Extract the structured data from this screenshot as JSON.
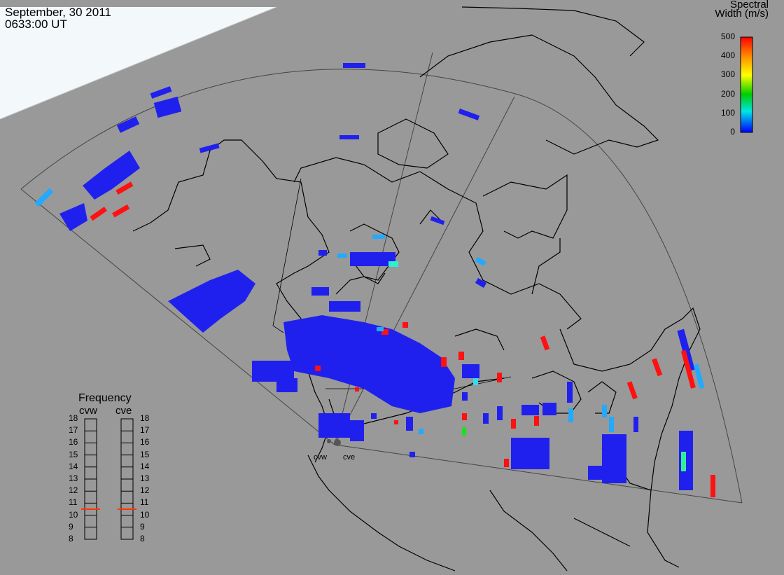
{
  "header": {
    "date": "September, 30 2011",
    "time": "0633:00 UT"
  },
  "colorbar": {
    "title_line1": "Spectral",
    "title_line2": "Width (m/s)",
    "ticks": [
      "500",
      "400",
      "300",
      "200",
      "100",
      "0"
    ],
    "gradient": [
      "#ff0000",
      "#ff8c00",
      "#ffff00",
      "#00cc00",
      "#00e5e5",
      "#0000ff"
    ]
  },
  "radars": {
    "west": "cvw",
    "east": "cve"
  },
  "frequency": {
    "title": "Frequency",
    "cvw_label": "cvw",
    "cve_label": "cve",
    "ticks": [
      "18",
      "17",
      "16",
      "15",
      "14",
      "13",
      "12",
      "11",
      "10",
      "9",
      "8"
    ],
    "cvw_value": 10.5,
    "cve_value": 10.5,
    "marker_color": "#ff3300"
  },
  "colors": {
    "background": "#999999",
    "daylight": "#f3f8fb",
    "scatter": "#2020ee",
    "high_width": "#ff1111",
    "mid_width": "#22aaff",
    "coast": "#000000",
    "fov": "#444444"
  }
}
